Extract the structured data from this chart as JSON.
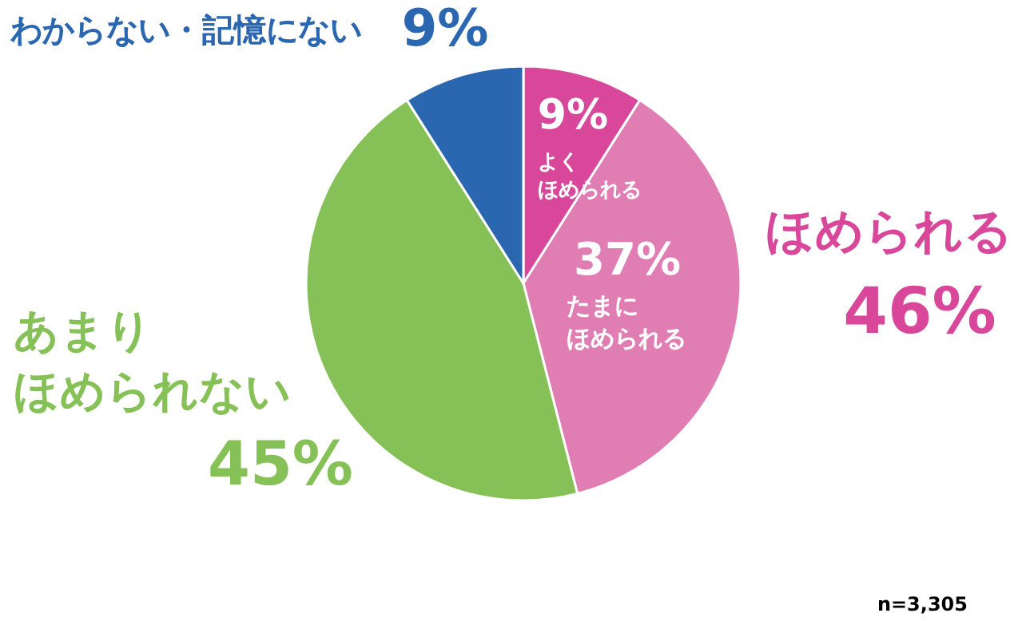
{
  "chart_data": {
    "type": "pie",
    "categories": [
      "よくほめられる",
      "たまにほめられる",
      "あまりほめられない",
      "わからない・記憶にない"
    ],
    "values": [
      9,
      37,
      45,
      9
    ],
    "colors": [
      "#d8479a",
      "#e07eb4",
      "#85c156",
      "#2b66b1"
    ],
    "value_labels": [
      "9%",
      "37%",
      "45%",
      "9%"
    ],
    "annotations": [
      "ほめられる",
      "46%",
      "n=3,305"
    ]
  }
}
